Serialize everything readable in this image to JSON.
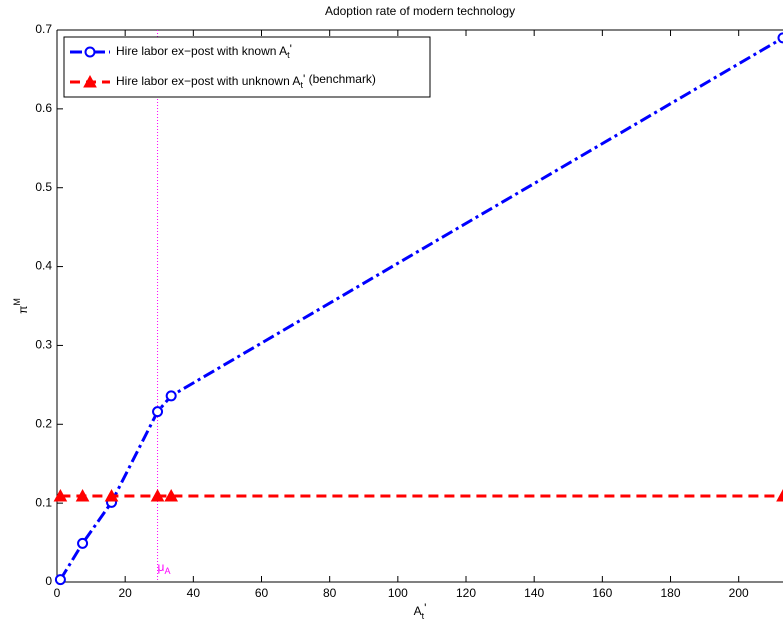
{
  "chart_data": {
    "type": "line",
    "title": "Adoption rate of modern technology",
    "xlabel": {
      "base": "A",
      "sub": "t",
      "suffix": "'"
    },
    "ylabel": {
      "base": "π",
      "sup": "M"
    },
    "xlim": [
      0,
      213
    ],
    "ylim": [
      0,
      0.7
    ],
    "xticks": [
      0,
      20,
      40,
      60,
      80,
      100,
      120,
      140,
      160,
      180,
      200
    ],
    "yticks": [
      0,
      0.1,
      0.2,
      0.3,
      0.4,
      0.5,
      0.6,
      0.7
    ],
    "legend": "upper left",
    "series": [
      {
        "name": {
          "base": "Hire labor ex−post with known A",
          "sub": "t",
          "suffix": "'"
        },
        "color": "#0000ff",
        "marker": "circle",
        "linestyle": "dashdot",
        "x": [
          1,
          7.5,
          16,
          29.5,
          33.5,
          213
        ],
        "values": [
          0.003,
          0.049,
          0.101,
          0.216,
          0.236,
          0.69
        ]
      },
      {
        "name": {
          "base": "Hire labor ex−post with unknown A",
          "sub": "t",
          "suffix": "' (benchmark)"
        },
        "color": "#ff0000",
        "marker": "triangle",
        "linestyle": "dashed",
        "x": [
          1,
          7.5,
          16,
          29.5,
          33.5,
          213
        ],
        "values": [
          0.109,
          0.109,
          0.109,
          0.109,
          0.109,
          0.109
        ]
      }
    ],
    "annotations": [
      {
        "x": 29.5,
        "text": "μ",
        "sub": "A",
        "color": "#ff00ff"
      }
    ]
  }
}
